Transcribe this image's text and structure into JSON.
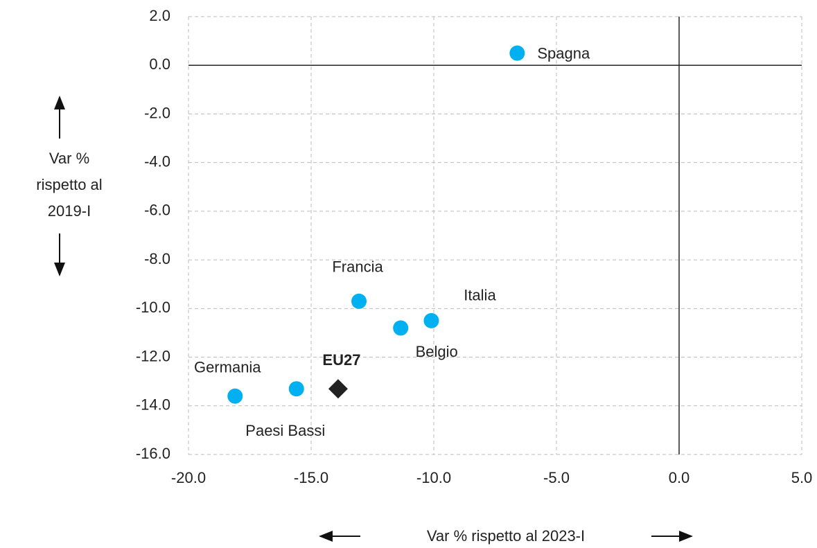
{
  "chart_data": {
    "type": "scatter",
    "x_label": "Var % rispetto al 2023-I",
    "y_label": [
      "Var %",
      "rispetto al",
      "2019-I"
    ],
    "series": [
      {
        "color": "#00b0f0",
        "marker": "circle",
        "labels": [
          "Spagna",
          "Francia",
          "Italia",
          "Belgio",
          "Paesi Bassi",
          "Germania"
        ],
        "x": [
          -6.6,
          -13.05,
          -10.1,
          -11.35,
          -15.6,
          -18.1
        ],
        "y": [
          0.5,
          -9.7,
          -10.5,
          -10.8,
          -13.3,
          -13.6
        ]
      },
      {
        "color": "#222222",
        "marker": "diamond",
        "label_bold": true,
        "labels": [
          "EU27"
        ],
        "x": [
          -13.9
        ],
        "y": [
          -13.3
        ]
      }
    ],
    "xlim": [
      -20,
      5
    ],
    "xticks": [
      {
        "value": -20,
        "label": "-20.0"
      },
      {
        "value": -15,
        "label": "-15.0"
      },
      {
        "value": -10,
        "label": "-10.0"
      },
      {
        "value": -5,
        "label": "-5.0"
      },
      {
        "value": 0,
        "label": "0.0"
      },
      {
        "value": 5,
        "label": "5.0"
      }
    ],
    "ylim": [
      -16,
      2
    ],
    "yticks": [
      {
        "value": 2,
        "label": "2.0"
      },
      {
        "value": 0,
        "label": "0.0"
      },
      {
        "value": -2,
        "label": "-2.0"
      },
      {
        "value": -4,
        "label": "-4.0"
      },
      {
        "value": -6,
        "label": "-6.0"
      },
      {
        "value": -8,
        "label": "-8.0"
      },
      {
        "value": -10,
        "label": "-10.0"
      },
      {
        "value": -12,
        "label": "-12.0"
      },
      {
        "value": -14,
        "label": "-14.0"
      },
      {
        "value": -16,
        "label": "-16.0"
      }
    ],
    "grid": true
  }
}
